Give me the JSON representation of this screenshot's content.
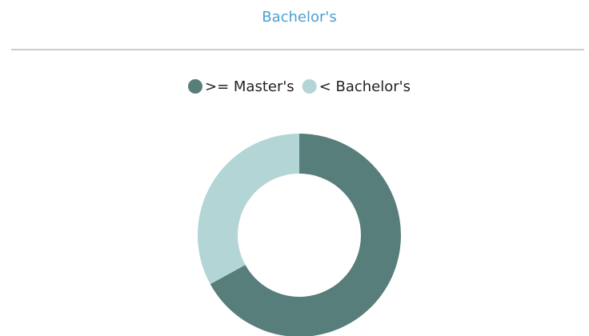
{
  "chart_data": {
    "type": "pie",
    "title": "Bachelor's",
    "categories": [
      ">= Master's",
      "< Bachelor's"
    ],
    "values": [
      67,
      33
    ],
    "colors": [
      "#577e7a",
      "#b3d5d5"
    ],
    "legend": "top"
  }
}
